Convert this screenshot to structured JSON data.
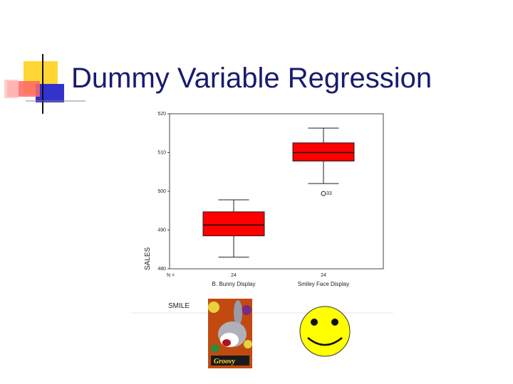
{
  "slide": {
    "title": "Dummy Variable Regression"
  },
  "colors": {
    "title": "#1a1a6e",
    "box_fill": "#ff0000",
    "deco_yellow": "#ffd633",
    "deco_blue": "#3333cc",
    "deco_red": "#ff6666"
  },
  "chart_data": {
    "type": "boxplot",
    "xlabel": "SMILE",
    "ylabel": "SALES",
    "ylim": [
      480,
      520
    ],
    "yticks": [
      480,
      490,
      500,
      510,
      520
    ],
    "n_label": "N =",
    "categories": [
      "B. Bunny Display",
      "Smiley Face Display"
    ],
    "n": [
      24,
      24
    ],
    "boxes": [
      {
        "whisker_low": 483,
        "q1": 488.5,
        "median": 491.3,
        "q3": 494.7,
        "whisker_high": 497.8
      },
      {
        "whisker_low": 502,
        "q1": 507.8,
        "median": 510.0,
        "q3": 512.5,
        "whisker_high": 516.3
      }
    ],
    "outliers": [
      {
        "category_index": 1,
        "value": 499.6,
        "label": "33"
      }
    ],
    "grid": false,
    "legend": "none"
  },
  "images": {
    "bunny": "bugs-bunny-groovy-picture",
    "smiley": "smiley-face-picture"
  },
  "bunny_logo_text": "Groovy"
}
